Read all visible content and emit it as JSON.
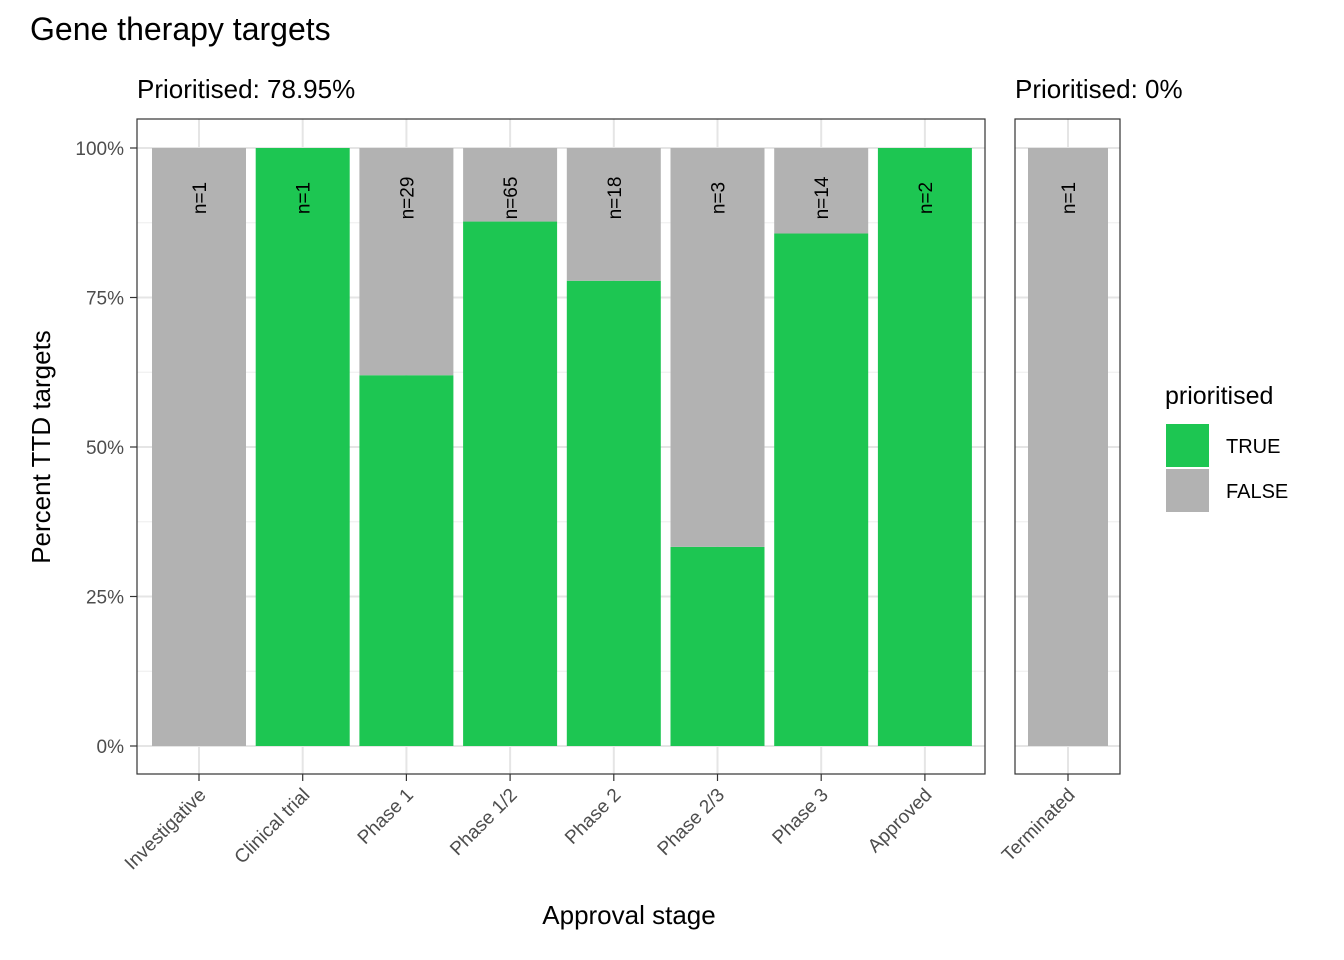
{
  "chart_data": {
    "type": "bar",
    "title": "Gene therapy targets",
    "xlabel": "Approval stage",
    "ylabel": "Percent TTD targets",
    "ylim": [
      0,
      1
    ],
    "y_ticks": [
      "0%",
      "25%",
      "50%",
      "75%",
      "100%"
    ],
    "y_tick_values": [
      0,
      0.25,
      0.5,
      0.75,
      1
    ],
    "stacked": true,
    "grid": true,
    "legend_position": "right",
    "legend": {
      "title": "prioritised",
      "entries": [
        {
          "label": "TRUE",
          "color": "#1DC652"
        },
        {
          "label": "FALSE",
          "color": "#B2B2B2"
        }
      ]
    },
    "panels": [
      {
        "label": "Prioritised: 78.95%",
        "categories": [
          "Investigative",
          "Clinical trial",
          "Phase 1",
          "Phase 1/2",
          "Phase 2",
          "Phase 2/3",
          "Phase 3",
          "Approved"
        ],
        "n_labels": [
          "n=1",
          "n=1",
          "n=29",
          "n=65",
          "n=18",
          "n=3",
          "n=14",
          "n=2"
        ],
        "series": [
          {
            "name": "TRUE",
            "values": [
              0,
              1,
              0.62,
              0.877,
              0.778,
              0.333,
              0.857,
              1
            ]
          },
          {
            "name": "FALSE",
            "values": [
              1,
              0,
              0.38,
              0.123,
              0.222,
              0.667,
              0.143,
              0
            ]
          }
        ]
      },
      {
        "label": "Prioritised: 0%",
        "categories": [
          "Terminated"
        ],
        "n_labels": [
          "n=1"
        ],
        "series": [
          {
            "name": "TRUE",
            "values": [
              0
            ]
          },
          {
            "name": "FALSE",
            "values": [
              1
            ]
          }
        ]
      }
    ]
  }
}
